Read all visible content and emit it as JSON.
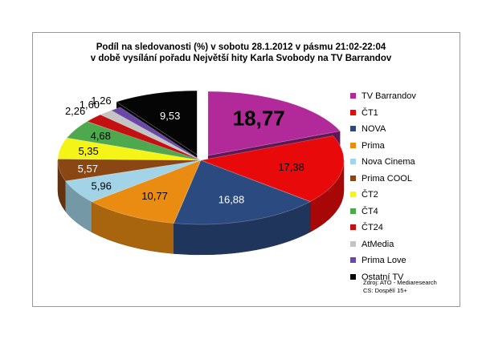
{
  "chart_data": {
    "type": "pie",
    "title_lines": [
      "Podíl na sledovanosti (%) v sobotu 28.1.2012 v pásmu 21:02-22:04",
      "v době vysílání pořadu Největší hity Karla Svobody na TV Barrandov"
    ],
    "slices": [
      {
        "label": "TV Barrandov",
        "value": 18.77,
        "display": "18,77",
        "color": "#b2299a",
        "exploded": true
      },
      {
        "label": "ČT1",
        "value": 17.38,
        "display": "17,38",
        "color": "#e80a0a"
      },
      {
        "label": "NOVA",
        "value": 16.88,
        "display": "16,88",
        "color": "#2b4a80"
      },
      {
        "label": "Prima",
        "value": 10.77,
        "display": "10,77",
        "color": "#eb8c12"
      },
      {
        "label": "Nova Cinema",
        "value": 5.96,
        "display": "5,96",
        "color": "#a2d3e6"
      },
      {
        "label": "Prima COOL",
        "value": 5.57,
        "display": "5,57",
        "color": "#8a4613"
      },
      {
        "label": "ČT2",
        "value": 5.35,
        "display": "5,35",
        "color": "#f4f416"
      },
      {
        "label": "ČT4",
        "value": 4.68,
        "display": "4,68",
        "color": "#4ea84e"
      },
      {
        "label": "ČT24",
        "value": 2.26,
        "display": "2,26",
        "color": "#c41010"
      },
      {
        "label": "AtMedia",
        "value": 1.6,
        "display": "1,60",
        "color": "#c4c4c4"
      },
      {
        "label": "Prima Love",
        "value": 1.26,
        "display": "1,26",
        "color": "#6a48a8"
      },
      {
        "label": "Ostatní TV",
        "value": 9.53,
        "display": "9,53",
        "color": "#050505",
        "exploded": true
      }
    ],
    "legend_position": "right"
  },
  "source_lines": [
    "Zdroj: ATO - Mediaresearch",
    "CS: Dospělí 15+"
  ]
}
